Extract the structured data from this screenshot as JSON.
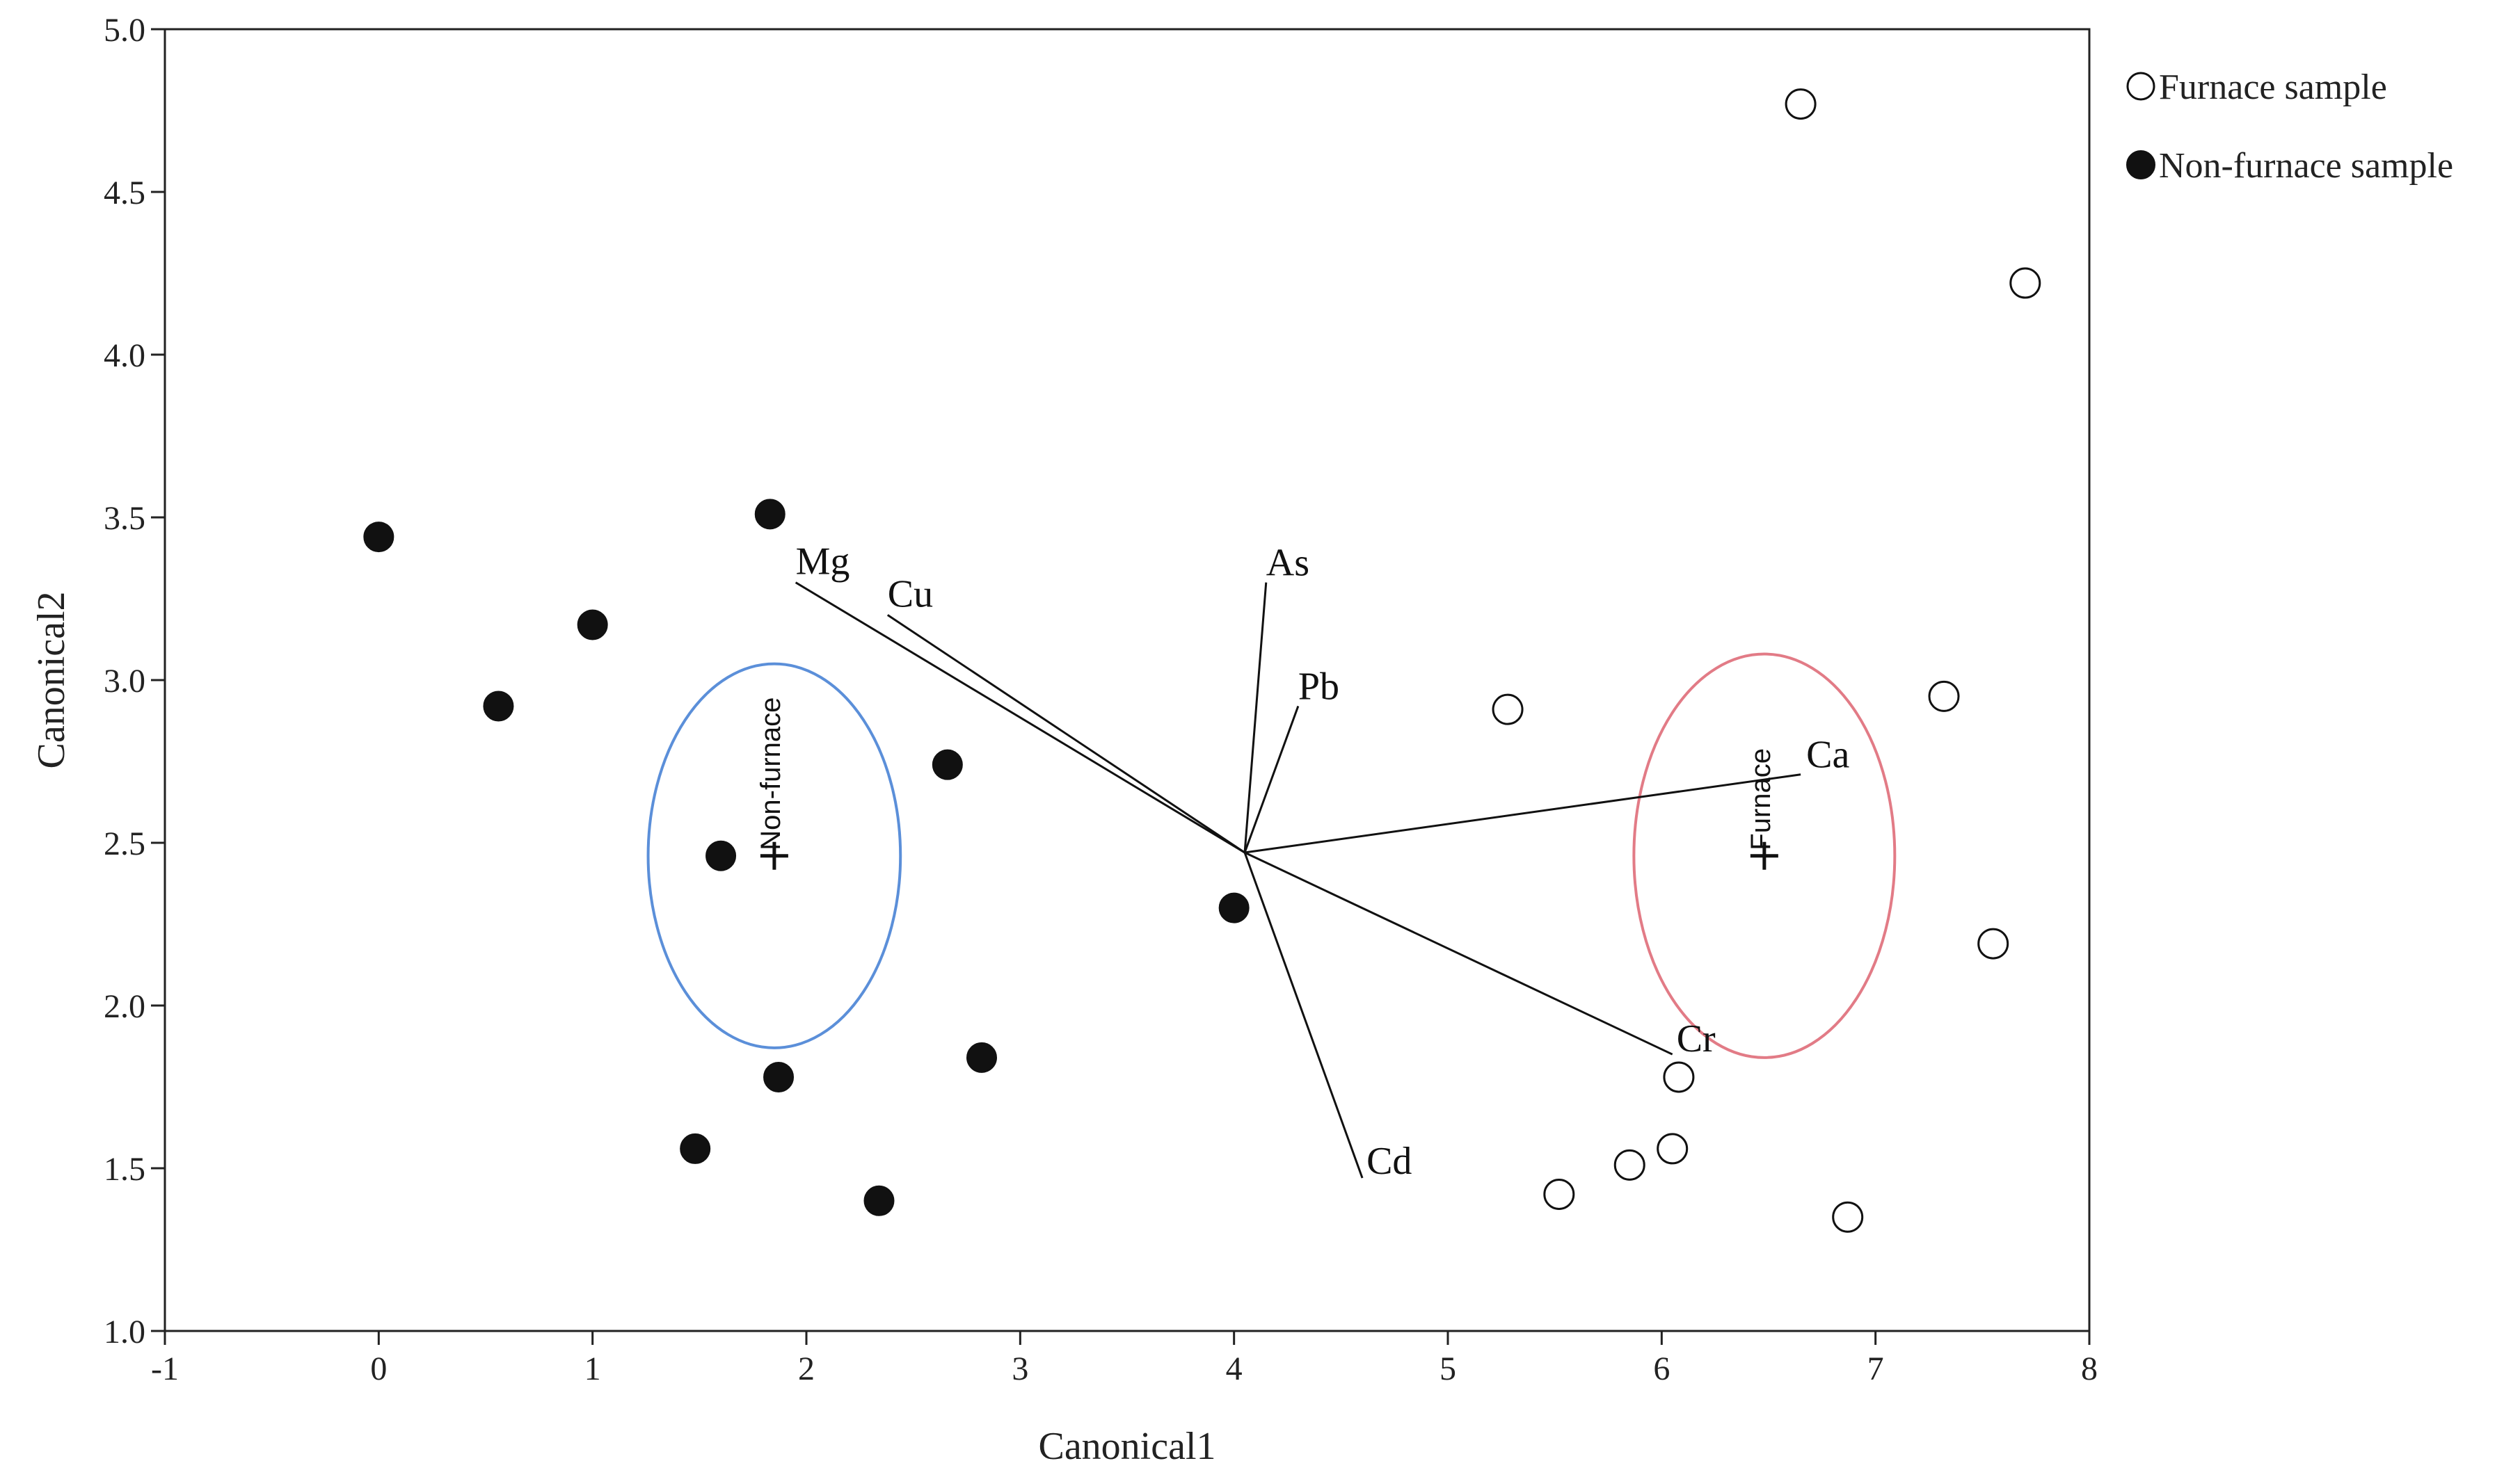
{
  "chart_data": {
    "type": "scatter",
    "title": "",
    "xlabel": "Canonical1",
    "ylabel": "Canonical2",
    "xlim": [
      -1,
      8
    ],
    "ylim": [
      1.0,
      5.0
    ],
    "x_ticks": [
      -1,
      0,
      1,
      2,
      3,
      4,
      5,
      6,
      7,
      8
    ],
    "x_tick_labels": [
      "-1",
      "0",
      "1",
      "2",
      "3",
      "4",
      "5",
      "6",
      "7",
      "8"
    ],
    "y_ticks": [
      1.0,
      1.5,
      2.0,
      2.5,
      3.0,
      3.5,
      4.0,
      4.5,
      5.0
    ],
    "y_tick_labels": [
      "1.0",
      "1.5",
      "2.0",
      "2.5",
      "3.0",
      "3.5",
      "4.0",
      "4.5",
      "5.0"
    ],
    "grid": false,
    "legend_position": "top-right outside",
    "series": [
      {
        "name": "Furnace sample",
        "marker": "open-circle",
        "points": [
          [
            6.65,
            4.77
          ],
          [
            7.7,
            4.22
          ],
          [
            5.28,
            2.91
          ],
          [
            7.32,
            2.95
          ],
          [
            7.55,
            2.19
          ],
          [
            6.08,
            1.78
          ],
          [
            6.05,
            1.56
          ],
          [
            5.85,
            1.51
          ],
          [
            5.52,
            1.42
          ],
          [
            6.87,
            1.35
          ]
        ]
      },
      {
        "name": "Non-furnace sample",
        "marker": "filled-circle",
        "points": [
          [
            0.0,
            3.44
          ],
          [
            1.83,
            3.51
          ],
          [
            1.0,
            3.17
          ],
          [
            0.56,
            2.92
          ],
          [
            1.6,
            2.46
          ],
          [
            2.66,
            2.74
          ],
          [
            4.0,
            2.3
          ],
          [
            2.82,
            1.84
          ],
          [
            1.87,
            1.78
          ],
          [
            1.48,
            1.56
          ],
          [
            2.34,
            1.4
          ]
        ]
      }
    ],
    "biplot_origin": [
      4.05,
      2.47
    ],
    "vectors": [
      {
        "label": "Mg",
        "end": [
          1.95,
          3.3
        ]
      },
      {
        "label": "Cu",
        "end": [
          2.38,
          3.2
        ]
      },
      {
        "label": "As",
        "end": [
          4.15,
          3.3
        ]
      },
      {
        "label": "Pb",
        "end": [
          4.3,
          2.92
        ]
      },
      {
        "label": "Ca",
        "end": [
          6.65,
          2.71
        ]
      },
      {
        "label": "Cr",
        "end": [
          6.05,
          1.85
        ]
      },
      {
        "label": "Cd",
        "end": [
          4.6,
          1.47
        ]
      }
    ],
    "group_centroids": [
      {
        "label": "Non-furnace",
        "center": [
          1.85,
          2.46
        ],
        "radius_x": 0.59,
        "radius_y": 0.59,
        "color": "#5b8fd9"
      },
      {
        "label": "Furnace",
        "center": [
          6.48,
          2.46
        ],
        "radius_x": 0.61,
        "radius_y": 0.62,
        "color": "#e27b86"
      }
    ],
    "colors": {
      "axis": "#222222",
      "marker": "#111111",
      "vector": "#111111"
    }
  }
}
